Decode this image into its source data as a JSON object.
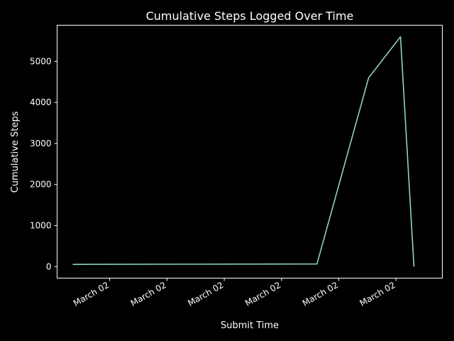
{
  "chart_data": {
    "type": "line",
    "title": "Cumulative Steps Logged Over Time",
    "xlabel": "Submit Time",
    "ylabel": "Cumulative Steps",
    "x_tick_labels": [
      "March 02",
      "March 02",
      "March 02",
      "March 02",
      "March 02",
      "March 02"
    ],
    "y_ticks": [
      0,
      1000,
      2000,
      3000,
      4000,
      5000
    ],
    "ylim": [
      -280,
      5880
    ],
    "xlim": [
      0,
      100
    ],
    "x_ticks": [
      10.45,
      26.63,
      42.81,
      58.99,
      75.17,
      91.35
    ],
    "grid": false,
    "series": [
      {
        "x": [
          0,
          69.0,
          83.6,
          92.6,
          96.4
        ],
        "values": [
          55,
          65,
          4600,
          5600,
          0
        ]
      }
    ],
    "colors": {
      "background": "#000000",
      "line": "#8dd3c7",
      "text": "#ffffff",
      "axes": "#ffffff"
    }
  }
}
